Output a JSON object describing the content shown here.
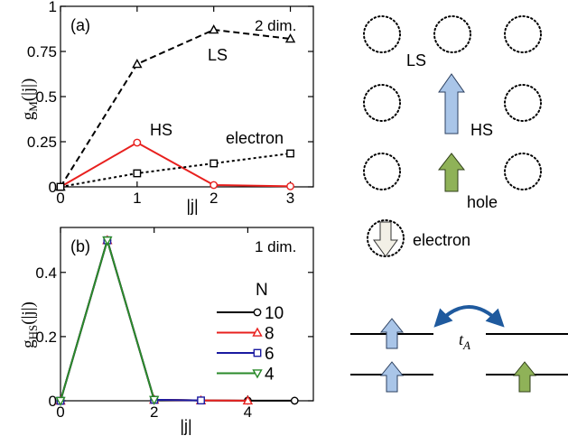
{
  "chart_data": [
    {
      "type": "line",
      "panel_label": "(a)",
      "annotation": "2 dim.",
      "xlabel": "|j|",
      "ylabel": "g",
      "ylabel_sub": "M",
      "ylabel_arg": "(|j|)",
      "xlim": [
        0,
        3.3
      ],
      "ylim": [
        0,
        1
      ],
      "xticks": [
        "0",
        "1",
        "2",
        "3"
      ],
      "yticks": [
        "0",
        "0.25",
        "0.5",
        "0.75",
        "1"
      ],
      "series": [
        {
          "name": "LS",
          "color": "#000000",
          "marker": "triangle",
          "dash": "dashed",
          "x": [
            0,
            1,
            2,
            3
          ],
          "y": [
            0,
            0.68,
            0.87,
            0.82
          ]
        },
        {
          "name": "HS",
          "color": "#e8201e",
          "marker": "circle",
          "dash": "solid",
          "x": [
            0,
            1,
            2,
            3
          ],
          "y": [
            0,
            0.245,
            0.01,
            0.003
          ]
        },
        {
          "name": "electron",
          "color": "#000000",
          "marker": "square",
          "dash": "dotted",
          "x": [
            0,
            1,
            2,
            3
          ],
          "y": [
            0,
            0.075,
            0.13,
            0.185
          ]
        }
      ]
    },
    {
      "type": "line",
      "panel_label": "(b)",
      "annotation": "1 dim.",
      "xlabel": "|j|",
      "ylabel": "g",
      "ylabel_sub": "HS",
      "ylabel_arg": "(|j|)",
      "xlim": [
        0,
        5.4
      ],
      "ylim": [
        0,
        0.54
      ],
      "xticks": [
        "0",
        "2",
        "4"
      ],
      "yticks": [
        "0",
        "0.2",
        "0.4"
      ],
      "legend_title": "N",
      "series": [
        {
          "name": "10",
          "color": "#000000",
          "marker": "circle",
          "x": [
            0,
            1,
            2,
            3,
            4,
            5
          ],
          "y": [
            0,
            0.5,
            0.003,
            0.001,
            0.0005,
            0.0002
          ]
        },
        {
          "name": "8",
          "color": "#e8201e",
          "marker": "triangle",
          "x": [
            0,
            1,
            2,
            3,
            4
          ],
          "y": [
            0,
            0.5,
            0.003,
            0.001,
            0.0005
          ]
        },
        {
          "name": "6",
          "color": "#1a1aa0",
          "marker": "square",
          "x": [
            0,
            1,
            2,
            3
          ],
          "y": [
            0,
            0.5,
            0.003,
            0.001
          ]
        },
        {
          "name": "4",
          "color": "#2a8a2a",
          "marker": "triangle-down",
          "x": [
            0,
            1,
            2
          ],
          "y": [
            0,
            0.5,
            0.003
          ]
        }
      ]
    }
  ],
  "diagram": {
    "labels": {
      "ls": "LS",
      "hs": "HS",
      "hole": "hole",
      "electron": "electron",
      "hopping": "t",
      "hopping_sub": "A"
    },
    "colors": {
      "hs_arrow": "#a9c5e8",
      "hole_arrow": "#8fb258",
      "electron_arrow": "#f2f0e6",
      "hop_arrow": "#1f5a9e"
    }
  }
}
